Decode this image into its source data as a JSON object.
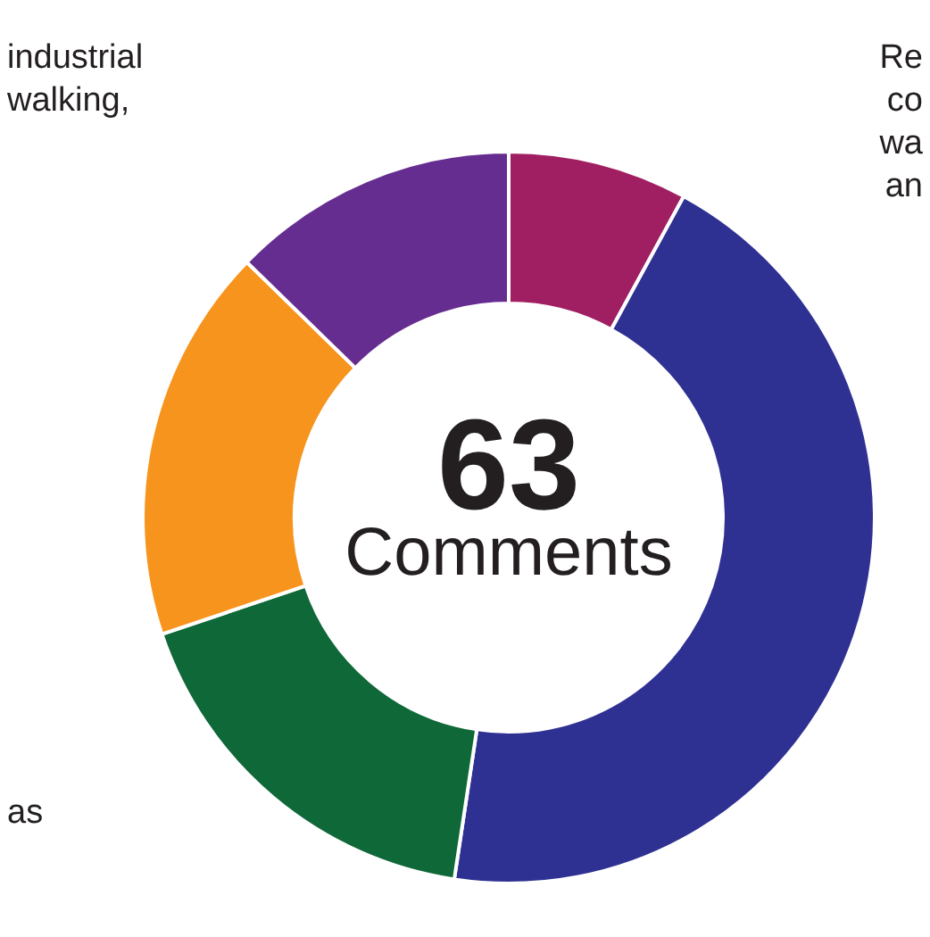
{
  "chart_data": {
    "type": "donut",
    "title": "63",
    "subtitle": "Comments",
    "categories": [
      null,
      null,
      null,
      null,
      null
    ],
    "values": [
      7.94,
      44.44,
      17.46,
      17.46,
      12.7
    ],
    "colors": [
      "#a01f62",
      "#2e3192",
      "#0f6837",
      "#f7941d",
      "#662d91"
    ],
    "annotations": [
      "industrial",
      "walking,",
      "as",
      "Re",
      "co",
      "wa",
      "an"
    ]
  }
}
